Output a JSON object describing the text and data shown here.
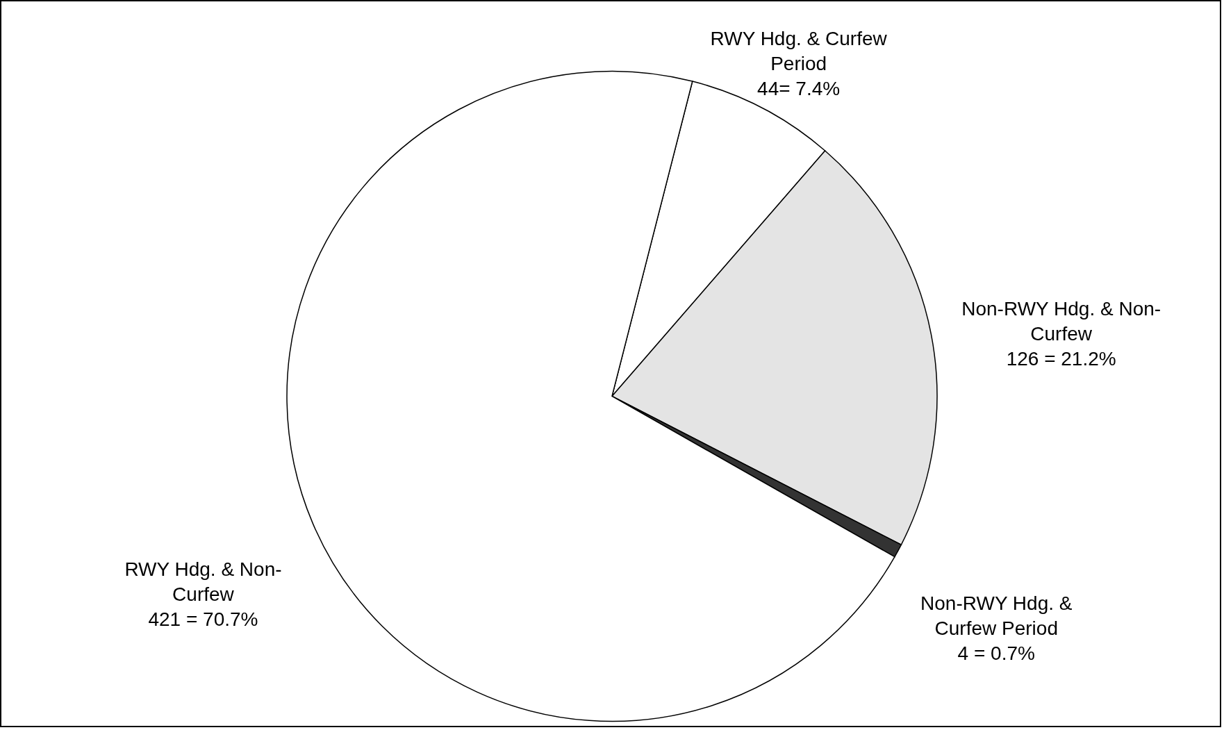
{
  "chart_data": {
    "type": "pie",
    "categories": [
      "RWY Hdg. & Curfew Period",
      "Non-RWY Hdg. & Non-Curfew",
      "Non-RWY Hdg. & Curfew Period",
      "RWY Hdg. & Non-Curfew"
    ],
    "values": [
      44,
      126,
      4,
      421
    ],
    "colors": [
      "#ffffff",
      "#e4e4e4",
      "#333333",
      "#ffffff"
    ],
    "value_labels": [
      "44= 7.4%",
      "126 = 21.2%",
      "4 = 0.7%",
      "421 = 70.7%"
    ]
  }
}
